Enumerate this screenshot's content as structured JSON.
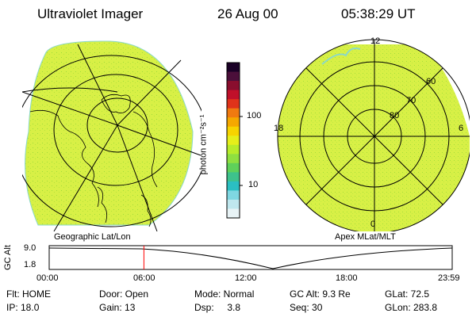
{
  "header": {
    "instrument": "Ultraviolet Imager",
    "date": "26 Aug 00",
    "time": "05:38:29 UT"
  },
  "left_panel": {
    "caption": "Geographic Lat/Lon"
  },
  "right_panel": {
    "caption": "Apex MLat/MLT",
    "mlt_labels": [
      "12",
      "18",
      "6",
      "0"
    ],
    "lat_labels": [
      "60",
      "70",
      "80"
    ]
  },
  "colorbar": {
    "unit_label": "photon cm⁻²s⁻¹",
    "tick_labels": [
      "100",
      "10"
    ],
    "colors": [
      "#1a0026",
      "#4b0f3a",
      "#8a0e2e",
      "#c0102a",
      "#e0331a",
      "#f07a10",
      "#f5a800",
      "#f7d400",
      "#e6ef1a",
      "#b8ec2a",
      "#8fe040",
      "#5fd15a",
      "#3ec28c",
      "#2bbfc2",
      "#7fd7e2",
      "#bfe7ee",
      "#e8f3f6"
    ]
  },
  "altitude_plot": {
    "axis_label": "GC Alt",
    "y_ticks": [
      "9.0",
      "1.8"
    ],
    "time_ticks": [
      "00:00",
      "06:00",
      "12:00",
      "18:00",
      "23:59"
    ],
    "marker_time_hours": 5.64,
    "marker_color": "#ff0000"
  },
  "info": {
    "row1": [
      "Flt: HOME",
      "Door: Open",
      "Mode: Normal",
      "GC Alt: 9.3 Re",
      "GLat:  72.5"
    ],
    "row2": [
      "IP: 18.0",
      "Gain: 13",
      "Dsp:     3.8",
      "Seq: 30",
      "GLon: 283.8"
    ]
  },
  "image_colors": {
    "auroral_field": "#d8f046",
    "speckle": "#9fdc3a",
    "edge": "#8ad8c8"
  }
}
